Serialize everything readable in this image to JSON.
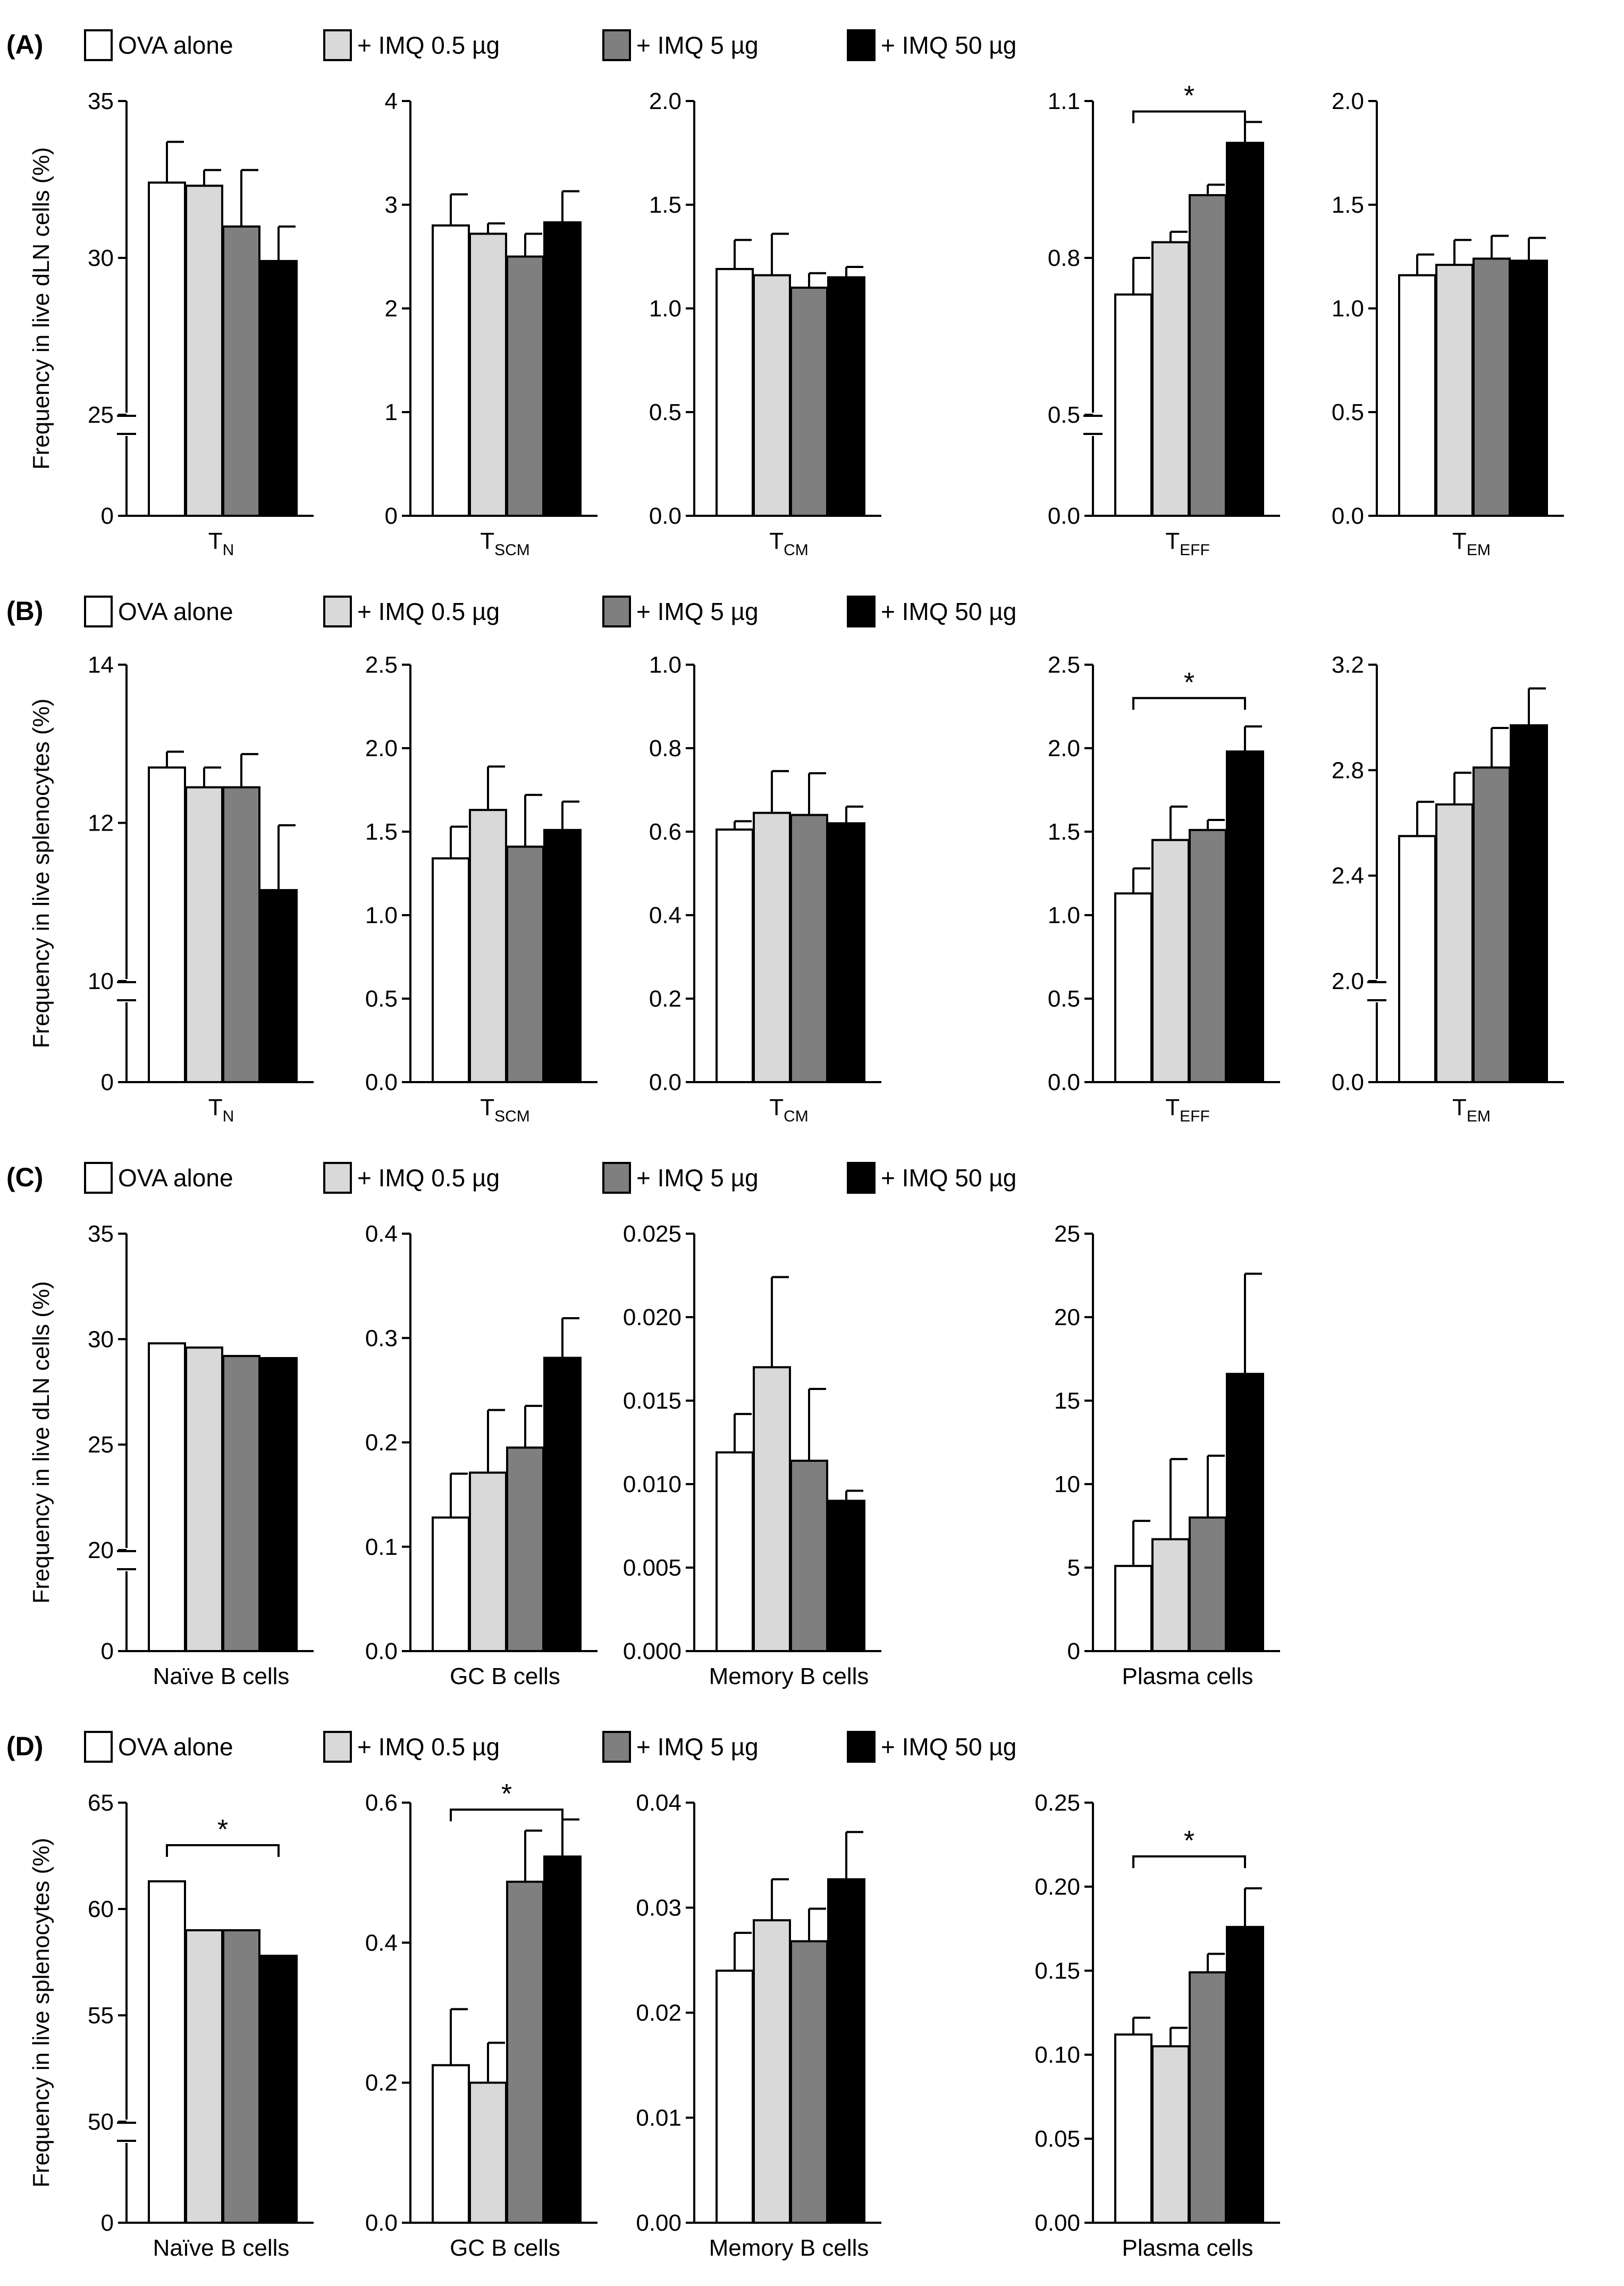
{
  "colors": {
    "ova": "#ffffff",
    "imq05": "#d9d9d9",
    "imq5": "#7f7f7f",
    "imq50": "#000000",
    "axis": "#000000"
  },
  "legend": {
    "items": [
      {
        "key": "ova",
        "label": "OVA alone"
      },
      {
        "key": "imq05",
        "label": "+ IMQ 0.5 µg"
      },
      {
        "key": "imq5",
        "label": "+ IMQ 5 µg"
      },
      {
        "key": "imq50",
        "label": "+ IMQ 50 µg"
      }
    ]
  },
  "chart_data": [
    {
      "panel": "A",
      "type": "bar",
      "ylabel": "Frequency in live dLN cells (%)",
      "series_names": [
        "OVA alone",
        "+ IMQ 0.5 µg",
        "+ IMQ 5 µg",
        "+ IMQ 50 µg"
      ],
      "subplots": [
        {
          "name": "T",
          "sub": "N",
          "ylim": [
            0,
            35
          ],
          "axis_break": true,
          "break_below": 25,
          "ticks": [
            "0",
            "25",
            "30",
            "35"
          ],
          "tick_values": [
            0,
            25,
            30,
            35
          ],
          "values": [
            32.4,
            32.3,
            31.0,
            29.9
          ],
          "errors": [
            1.3,
            0.5,
            1.8,
            1.1
          ],
          "sig": null
        },
        {
          "name": "T",
          "sub": "SCM",
          "ylim": [
            0,
            4
          ],
          "axis_break": false,
          "ticks": [
            "0",
            "1",
            "2",
            "3",
            "4"
          ],
          "tick_values": [
            0,
            1,
            2,
            3,
            4
          ],
          "values": [
            2.8,
            2.72,
            2.5,
            2.83
          ],
          "errors": [
            0.3,
            0.1,
            0.22,
            0.3
          ],
          "sig": null
        },
        {
          "name": "T",
          "sub": "CM",
          "ylim": [
            0,
            2
          ],
          "axis_break": false,
          "ticks": [
            "0.0",
            "0.5",
            "1.0",
            "1.5",
            "2.0"
          ],
          "tick_values": [
            0,
            0.5,
            1,
            1.5,
            2
          ],
          "values": [
            1.19,
            1.16,
            1.1,
            1.15
          ],
          "errors": [
            0.14,
            0.2,
            0.07,
            0.05
          ],
          "sig": null
        },
        {
          "name": "T",
          "sub": "EFF",
          "ylim": [
            0,
            1.1
          ],
          "axis_break": true,
          "break_below": 0.5,
          "ticks": [
            "0.0",
            "0.5",
            "0.8",
            "1.1"
          ],
          "tick_values": [
            0,
            0.5,
            0.8,
            1.1
          ],
          "values": [
            0.73,
            0.83,
            0.92,
            1.02
          ],
          "errors": [
            0.07,
            0.02,
            0.02,
            0.04
          ],
          "sig": {
            "from": 0,
            "to": 3,
            "value": 1.08,
            "label": "*"
          }
        },
        {
          "name": "T",
          "sub": "EM",
          "ylim": [
            0,
            2
          ],
          "axis_break": false,
          "ticks": [
            "0.0",
            "0.5",
            "1.0",
            "1.5",
            "2.0"
          ],
          "tick_values": [
            0,
            0.5,
            1,
            1.5,
            2
          ],
          "values": [
            1.16,
            1.21,
            1.24,
            1.23
          ],
          "errors": [
            0.1,
            0.12,
            0.11,
            0.11
          ],
          "sig": null
        }
      ]
    },
    {
      "panel": "B",
      "type": "bar",
      "ylabel": "Frequency in live splenocytes (%)",
      "series_names": [
        "OVA alone",
        "+ IMQ 0.5 µg",
        "+ IMQ 5 µg",
        "+ IMQ 50 µg"
      ],
      "subplots": [
        {
          "name": "T",
          "sub": "N",
          "ylim": [
            0,
            14
          ],
          "axis_break": true,
          "break_below": 10,
          "ticks": [
            "0",
            "10",
            "12",
            "14"
          ],
          "tick_values": [
            0,
            10,
            12,
            14
          ],
          "values": [
            12.7,
            12.45,
            12.45,
            11.15
          ],
          "errors": [
            0.2,
            0.25,
            0.42,
            0.82
          ],
          "sig": null
        },
        {
          "name": "T",
          "sub": "SCM",
          "ylim": [
            0,
            2.5
          ],
          "axis_break": false,
          "ticks": [
            "0.0",
            "0.5",
            "1.0",
            "1.5",
            "2.0",
            "2.5"
          ],
          "tick_values": [
            0,
            0.5,
            1,
            1.5,
            2,
            2.5
          ],
          "values": [
            1.34,
            1.63,
            1.41,
            1.51
          ],
          "errors": [
            0.19,
            0.26,
            0.31,
            0.17
          ],
          "sig": null
        },
        {
          "name": "T",
          "sub": "CM",
          "ylim": [
            0,
            1
          ],
          "axis_break": false,
          "ticks": [
            "0.0",
            "0.2",
            "0.4",
            "0.6",
            "0.8",
            "1.0"
          ],
          "tick_values": [
            0,
            0.2,
            0.4,
            0.6,
            0.8,
            1
          ],
          "values": [
            0.605,
            0.645,
            0.64,
            0.62
          ],
          "errors": [
            0.02,
            0.1,
            0.1,
            0.04
          ],
          "sig": null
        },
        {
          "name": "T",
          "sub": "EFF",
          "ylim": [
            0,
            2.5
          ],
          "axis_break": false,
          "ticks": [
            "0.0",
            "0.5",
            "1.0",
            "1.5",
            "2.0",
            "2.5"
          ],
          "tick_values": [
            0,
            0.5,
            1,
            1.5,
            2,
            2.5
          ],
          "values": [
            1.13,
            1.45,
            1.51,
            1.98
          ],
          "errors": [
            0.15,
            0.2,
            0.06,
            0.15
          ],
          "sig": {
            "from": 0,
            "to": 3,
            "value": 2.3,
            "label": "*"
          }
        },
        {
          "name": "T",
          "sub": "EM",
          "ylim": [
            0,
            3.2
          ],
          "axis_break": true,
          "break_below": 2.0,
          "ticks": [
            "0.0",
            "2.0",
            "2.4",
            "2.8",
            "3.2"
          ],
          "tick_values": [
            0,
            2,
            2.4,
            2.8,
            3.2
          ],
          "values": [
            2.55,
            2.67,
            2.81,
            2.97
          ],
          "errors": [
            0.13,
            0.12,
            0.15,
            0.14
          ],
          "sig": null
        }
      ]
    },
    {
      "panel": "C",
      "type": "bar",
      "ylabel": "Frequency in live dLN cells (%)",
      "series_names": [
        "OVA alone",
        "+ IMQ 0.5 µg",
        "+ IMQ 5 µg",
        "+ IMQ 50 µg"
      ],
      "subplots": [
        {
          "name": "Naïve B cells",
          "sub": "",
          "ylim": [
            0,
            35
          ],
          "axis_break": true,
          "break_below": 20,
          "ticks": [
            "0",
            "20",
            "25",
            "30",
            "35"
          ],
          "tick_values": [
            0,
            20,
            25,
            30,
            35
          ],
          "values": [
            29.8,
            29.6,
            29.2,
            29.1
          ],
          "errors": [
            0,
            0,
            0,
            0
          ],
          "sig": null
        },
        {
          "name": "GC B cells",
          "sub": "",
          "ylim": [
            0,
            0.4
          ],
          "axis_break": false,
          "ticks": [
            "0.0",
            "0.1",
            "0.2",
            "0.3",
            "0.4"
          ],
          "tick_values": [
            0,
            0.1,
            0.2,
            0.3,
            0.4
          ],
          "values": [
            0.128,
            0.171,
            0.195,
            0.281
          ],
          "errors": [
            0.042,
            0.06,
            0.04,
            0.038
          ],
          "sig": null
        },
        {
          "name": "Memory B cells",
          "sub": "",
          "ylim": [
            0,
            0.025
          ],
          "axis_break": false,
          "ticks": [
            "0.000",
            "0.005",
            "0.010",
            "0.015",
            "0.020",
            "0.025"
          ],
          "tick_values": [
            0,
            0.005,
            0.01,
            0.015,
            0.02,
            0.025
          ],
          "values": [
            0.0119,
            0.017,
            0.0114,
            0.009
          ],
          "errors": [
            0.0023,
            0.0054,
            0.0043,
            0.0006
          ],
          "sig": null
        },
        {
          "name": "Plasma cells",
          "sub": "",
          "ylim": [
            0,
            25
          ],
          "axis_break": false,
          "ticks": [
            "0",
            "5",
            "10",
            "15",
            "20",
            "25"
          ],
          "tick_values": [
            0,
            5,
            10,
            15,
            20,
            25
          ],
          "values": [
            5.1,
            6.7,
            8.0,
            16.6
          ],
          "errors": [
            2.7,
            4.8,
            3.7,
            6.0
          ],
          "sig": null
        }
      ]
    },
    {
      "panel": "D",
      "type": "bar",
      "ylabel": "Frequency in live splenocytes (%)",
      "series_names": [
        "OVA alone",
        "+ IMQ 0.5 µg",
        "+ IMQ 5 µg",
        "+ IMQ 50 µg"
      ],
      "subplots": [
        {
          "name": "Naïve B cells",
          "sub": "",
          "ylim": [
            0,
            65
          ],
          "axis_break": true,
          "break_below": 50,
          "ticks": [
            "0",
            "50",
            "55",
            "60",
            "65"
          ],
          "tick_values": [
            0,
            50,
            55,
            60,
            65
          ],
          "values": [
            61.3,
            59.0,
            59.0,
            57.8
          ],
          "errors": [
            0,
            0,
            0,
            0
          ],
          "sig": {
            "from": 0,
            "to": 3,
            "value": 63.0,
            "label": "*"
          }
        },
        {
          "name": "GC B cells",
          "sub": "",
          "ylim": [
            0,
            0.6
          ],
          "axis_break": false,
          "ticks": [
            "0.0",
            "0.2",
            "0.4",
            "0.6"
          ],
          "tick_values": [
            0,
            0.2,
            0.4,
            0.6
          ],
          "values": [
            0.225,
            0.2,
            0.487,
            0.523
          ],
          "errors": [
            0.08,
            0.057,
            0.073,
            0.053
          ],
          "sig": {
            "from": 0,
            "to": 3,
            "value": 0.59,
            "label": "*"
          }
        },
        {
          "name": "Memory B cells",
          "sub": "",
          "ylim": [
            0,
            0.04
          ],
          "axis_break": false,
          "ticks": [
            "0.00",
            "0.01",
            "0.02",
            "0.03",
            "0.04"
          ],
          "tick_values": [
            0,
            0.01,
            0.02,
            0.03,
            0.04
          ],
          "values": [
            0.024,
            0.0288,
            0.0268,
            0.0327
          ],
          "errors": [
            0.0036,
            0.0039,
            0.0031,
            0.0045
          ],
          "sig": null
        },
        {
          "name": "Plasma cells",
          "sub": "",
          "ylim": [
            0,
            0.25
          ],
          "axis_break": false,
          "ticks": [
            "0.00",
            "0.05",
            "0.10",
            "0.15",
            "0.20",
            "0.25"
          ],
          "tick_values": [
            0,
            0.05,
            0.1,
            0.15,
            0.2,
            0.25
          ],
          "values": [
            0.112,
            0.105,
            0.149,
            0.176
          ],
          "errors": [
            0.01,
            0.011,
            0.011,
            0.023
          ],
          "sig": {
            "from": 0,
            "to": 3,
            "value": 0.218,
            "label": "*"
          }
        }
      ]
    }
  ]
}
